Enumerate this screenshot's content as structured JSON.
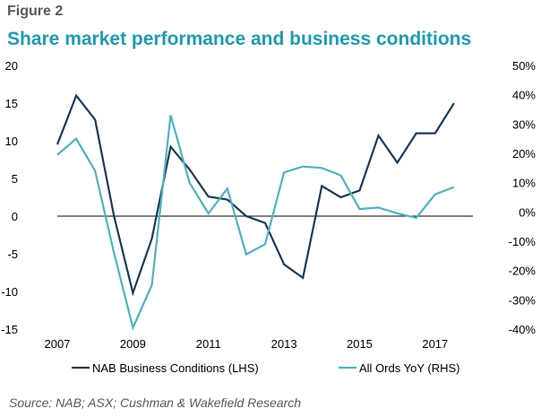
{
  "figure": {
    "label": "Figure 2",
    "title": "Share market performance and business conditions",
    "source": "Source: NAB; ASX; Cushman & Wakefield Research"
  },
  "chart_data": {
    "type": "line",
    "x_ticks": [
      "2007",
      "2009",
      "2011",
      "2013",
      "2015",
      "2017"
    ],
    "xlim": [
      2007,
      2018
    ],
    "left_axis": {
      "ticks": [
        "20",
        "15",
        "10",
        "5",
        "0",
        "-5",
        "-10",
        "-15"
      ],
      "ylim": [
        -15,
        20
      ]
    },
    "right_axis": {
      "ticks": [
        "50%",
        "40%",
        "30%",
        "20%",
        "10%",
        "0%",
        "-10%",
        "-20%",
        "-30%",
        "-40%"
      ],
      "ylim": [
        -40,
        50
      ]
    },
    "legend_position": "bottom",
    "series": [
      {
        "name": "NAB Business Conditions (LHS)",
        "axis": "left",
        "color": "#1b3a57",
        "points": [
          [
            2007.0,
            9.5
          ],
          [
            2007.5,
            16.0
          ],
          [
            2008.0,
            12.8
          ],
          [
            2008.5,
            0.0
          ],
          [
            2009.0,
            -10.2
          ],
          [
            2009.5,
            -3.0
          ],
          [
            2010.0,
            9.2
          ],
          [
            2010.5,
            6.2
          ],
          [
            2011.0,
            2.6
          ],
          [
            2011.5,
            2.2
          ],
          [
            2012.0,
            0.0
          ],
          [
            2012.5,
            -0.9
          ],
          [
            2013.0,
            -6.4
          ],
          [
            2013.5,
            -8.2
          ],
          [
            2014.0,
            4.0
          ],
          [
            2014.5,
            2.5
          ],
          [
            2015.0,
            3.4
          ],
          [
            2015.5,
            10.7
          ],
          [
            2016.0,
            7.1
          ],
          [
            2016.5,
            11.0
          ],
          [
            2017.0,
            11.0
          ],
          [
            2017.5,
            15.0
          ]
        ]
      },
      {
        "name": "All Ords YoY (RHS)",
        "axis": "right",
        "color": "#4fb3bf",
        "points": [
          [
            2007.0,
            19.5
          ],
          [
            2007.5,
            25.0
          ],
          [
            2008.0,
            14.0
          ],
          [
            2008.5,
            -14.0
          ],
          [
            2009.0,
            -39.5
          ],
          [
            2009.5,
            -25.0
          ],
          [
            2010.0,
            33.0
          ],
          [
            2010.5,
            10.0
          ],
          [
            2011.0,
            -0.5
          ],
          [
            2011.5,
            8.0
          ],
          [
            2012.0,
            -14.5
          ],
          [
            2012.5,
            -11.0
          ],
          [
            2013.0,
            13.5
          ],
          [
            2013.5,
            15.5
          ],
          [
            2014.0,
            15.0
          ],
          [
            2014.5,
            12.5
          ],
          [
            2015.0,
            1.0
          ],
          [
            2015.5,
            1.5
          ],
          [
            2016.0,
            -0.5
          ],
          [
            2016.5,
            -2.0
          ],
          [
            2017.0,
            6.0
          ],
          [
            2017.5,
            8.5
          ]
        ]
      }
    ]
  }
}
